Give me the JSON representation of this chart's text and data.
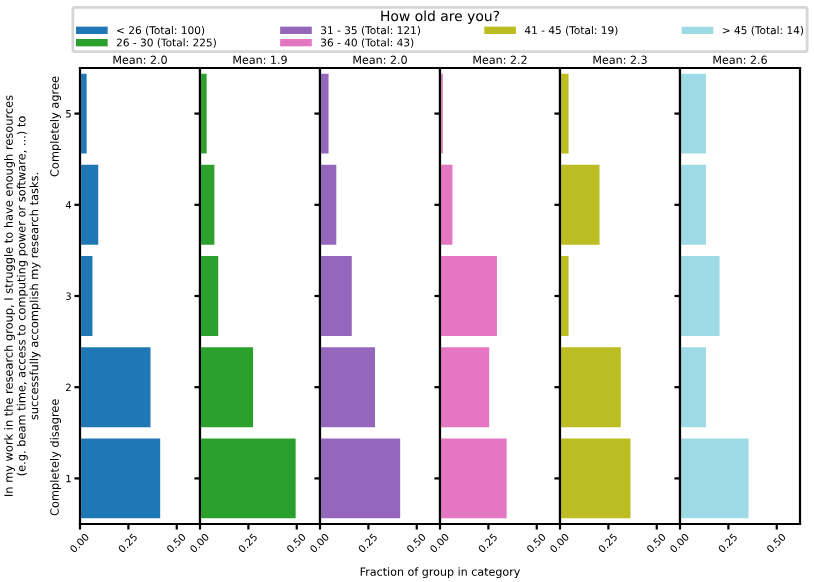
{
  "chart_data": [
    {
      "type": "bar",
      "orientation": "horizontal",
      "title": "Mean: 2.0",
      "ylabel": "In my work in the research group, I struggle to have enough resources\n(e.g. beam time, access to computing power or software, ...) to\nsuccessfully accomplish my research tasks.",
      "annotations": [
        "Completely agree",
        "Completely disagree"
      ],
      "legend": "top",
      "legend_title": "How old are you?",
      "categories": [
        "5",
        "4",
        "3",
        "2",
        "1"
      ],
      "xlim": [
        0,
        0.62
      ],
      "xticks": [
        {
          "value": 0,
          "label": "0.00"
        },
        {
          "value": 0.25,
          "label": "0.25"
        },
        {
          "value": 0.5,
          "label": "0.50"
        }
      ],
      "series": [
        {
          "name": "< 26 (Total: 100)",
          "color": "#1f77b4",
          "values": [
            0.04,
            0.1,
            0.07,
            0.37,
            0.42
          ]
        }
      ]
    },
    {
      "type": "bar",
      "orientation": "horizontal",
      "title": "Mean: 1.9",
      "tick_labels": "x",
      "categories": [
        "5",
        "4",
        "3",
        "2",
        "1"
      ],
      "xlim": [
        0,
        0.62
      ],
      "xticks": [
        {
          "value": 0,
          "label": "0.00"
        },
        {
          "value": 0.25,
          "label": "0.25"
        },
        {
          "value": 0.5,
          "label": "0.50"
        }
      ],
      "series": [
        {
          "name": "26 - 30 (Total: 225)",
          "color": "#2ca02c",
          "values": [
            0.04,
            0.08,
            0.1,
            0.28,
            0.5
          ]
        }
      ]
    },
    {
      "type": "bar",
      "orientation": "horizontal",
      "title": "Mean: 2.0",
      "tick_labels": "x",
      "xlabel": "Fraction of group in category",
      "categories": [
        "5",
        "4",
        "3",
        "2",
        "1"
      ],
      "xlim": [
        0,
        0.62
      ],
      "xticks": [
        {
          "value": 0,
          "label": "0.00"
        },
        {
          "value": 0.25,
          "label": "0.25"
        },
        {
          "value": 0.5,
          "label": "0.50"
        }
      ],
      "series": [
        {
          "name": "31 - 35 (Total: 121)",
          "color": "#9467bd",
          "values": [
            0.05,
            0.09,
            0.17,
            0.29,
            0.42
          ]
        }
      ]
    },
    {
      "type": "bar",
      "orientation": "horizontal",
      "title": "Mean: 2.2",
      "tick_labels": "x",
      "categories": [
        "5",
        "4",
        "3",
        "2",
        "1"
      ],
      "xlim": [
        0,
        0.62
      ],
      "xticks": [
        {
          "value": 0,
          "label": "0.00"
        },
        {
          "value": 0.25,
          "label": "0.25"
        },
        {
          "value": 0.5,
          "label": "0.50"
        }
      ],
      "series": [
        {
          "name": "36 - 40 (Total: 43)",
          "color": "#e377c2",
          "values": [
            0.02,
            0.07,
            0.3,
            0.26,
            0.35
          ]
        }
      ]
    },
    {
      "type": "bar",
      "orientation": "horizontal",
      "title": "Mean: 2.3",
      "tick_labels": "x",
      "categories": [
        "5",
        "4",
        "3",
        "2",
        "1"
      ],
      "xlim": [
        0,
        0.62
      ],
      "xticks": [
        {
          "value": 0,
          "label": "0.00"
        },
        {
          "value": 0.25,
          "label": "0.25"
        },
        {
          "value": 0.5,
          "label": "0.50"
        }
      ],
      "series": [
        {
          "name": "41 - 45 (Total: 19)",
          "color": "#bcbd22",
          "values": [
            0.05,
            0.21,
            0.05,
            0.32,
            0.37
          ]
        }
      ]
    },
    {
      "type": "bar",
      "orientation": "horizontal",
      "title": "Mean: 2.6",
      "tick_labels": "x",
      "categories": [
        "5",
        "4",
        "3",
        "2",
        "1"
      ],
      "xlim": [
        0,
        0.62
      ],
      "xticks": [
        {
          "value": 0,
          "label": "0.00"
        },
        {
          "value": 0.25,
          "label": "0.25"
        },
        {
          "value": 0.5,
          "label": "0.50"
        }
      ],
      "series": [
        {
          "name": "> 45 (Total: 14)",
          "color": "#9edae5",
          "values": [
            0.14,
            0.14,
            0.21,
            0.14,
            0.36
          ]
        }
      ]
    }
  ]
}
